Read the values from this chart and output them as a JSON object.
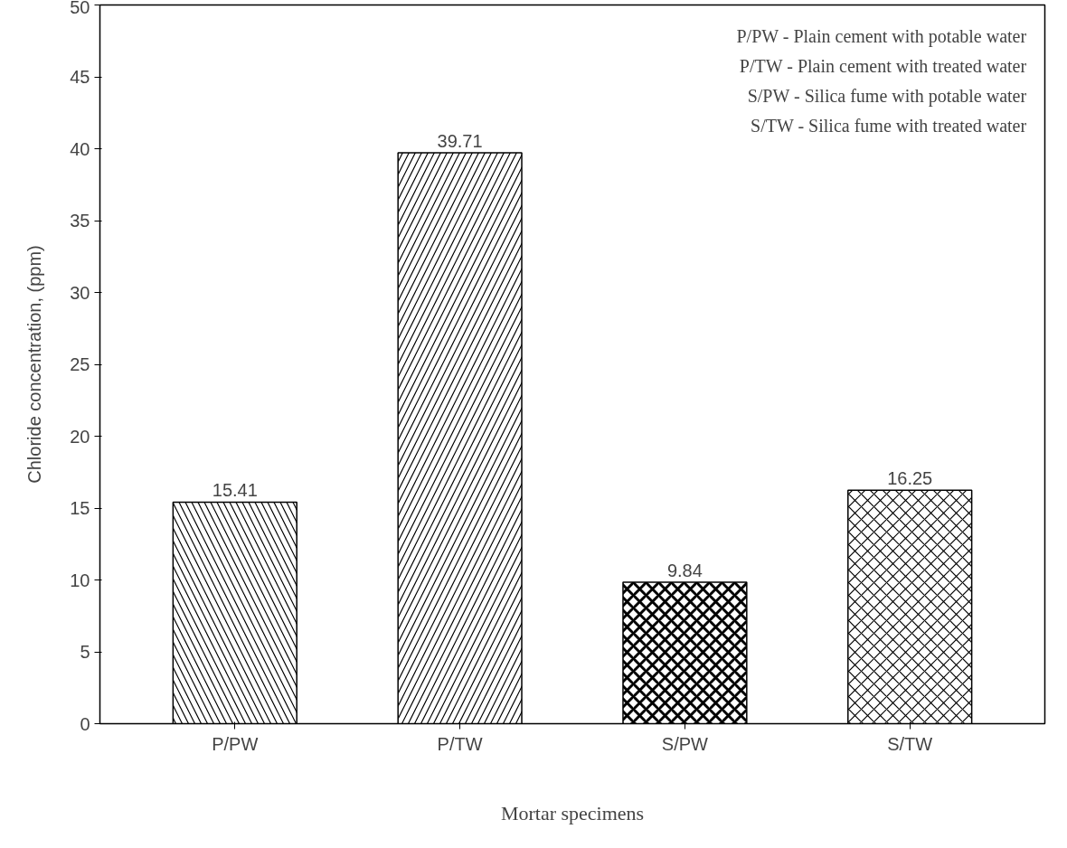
{
  "chart_data": {
    "type": "bar",
    "xlabel": "Mortar specimens",
    "ylabel": "Chloride concentration, (ppm)",
    "categories": [
      "P/PW",
      "P/TW",
      "S/PW",
      "S/TW"
    ],
    "values": [
      15.41,
      39.71,
      9.84,
      16.25
    ],
    "colors": [
      "#ffffff",
      "#ffffff",
      "#ffffff",
      "#ffffff"
    ],
    "ylim": [
      0,
      50
    ],
    "yticks": [
      0,
      5,
      10,
      15,
      20,
      25,
      30,
      35,
      40,
      45,
      50
    ],
    "data_labels": true,
    "grid": false,
    "annotations": [
      "P/PW - Plain cement with potable water",
      "P/TW - Plain cement with treated water",
      "S/PW - Silica fume with potable water",
      "S/TW - Silica fume with treated water"
    ]
  }
}
